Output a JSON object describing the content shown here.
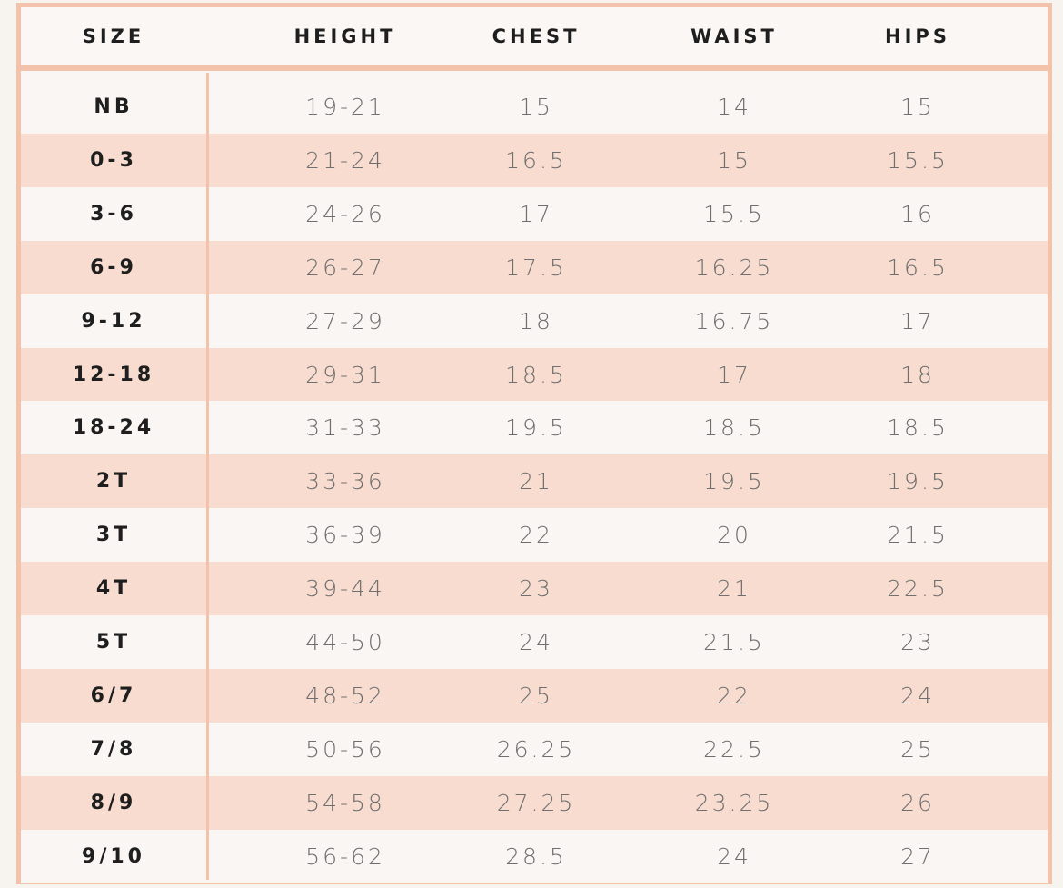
{
  "header": {
    "columns": [
      "SIZE",
      "HEIGHT",
      "CHEST",
      "WAIST",
      "HIPS"
    ]
  },
  "table": {
    "rows": [
      [
        "NB",
        "19-21",
        "15",
        "14",
        "15"
      ],
      [
        "0-3",
        "21-24",
        "16.5",
        "15",
        "15.5"
      ],
      [
        "3-6",
        "24-26",
        "17",
        "15.5",
        "16"
      ],
      [
        "6-9",
        "26-27",
        "17.5",
        "16.25",
        "16.5"
      ],
      [
        "9-12",
        "27-29",
        "18",
        "16.75",
        "17"
      ],
      [
        "12-18",
        "29-31",
        "18.5",
        "17",
        "18"
      ],
      [
        "18-24",
        "31-33",
        "19.5",
        "18.5",
        "18.5"
      ],
      [
        "2T",
        "33-36",
        "21",
        "19.5",
        "19.5"
      ],
      [
        "3T",
        "36-39",
        "22",
        "20",
        "21.5"
      ],
      [
        "4T",
        "39-44",
        "23",
        "21",
        "22.5"
      ],
      [
        "5T",
        "44-50",
        "24",
        "21.5",
        "23"
      ],
      [
        "6/7",
        "48-52",
        "25",
        "22",
        "24"
      ],
      [
        "7/8",
        "50-56",
        "26.25",
        "22.5",
        "25"
      ],
      [
        "8/9",
        "54-58",
        "27.25",
        "23.25",
        "26"
      ],
      [
        "9/10",
        "56-62",
        "28.5",
        "24",
        "27"
      ]
    ]
  }
}
